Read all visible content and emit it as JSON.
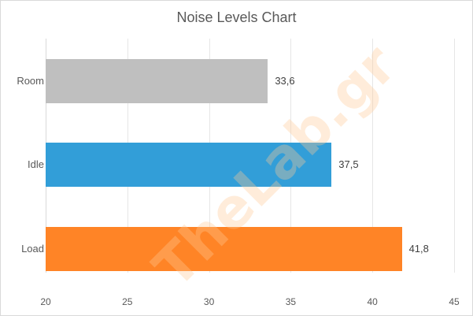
{
  "chart_data": {
    "type": "bar",
    "orientation": "horizontal",
    "title": "Noise Levels Chart",
    "categories": [
      "Room",
      "Idle",
      "Load"
    ],
    "values": [
      33.6,
      37.5,
      41.8
    ],
    "value_labels": [
      "33,6",
      "37,5",
      "41,8"
    ],
    "colors": [
      "#bfbfbf",
      "#329ed8",
      "#ff8426"
    ],
    "xlabel": "",
    "ylabel": "",
    "xlim": [
      20,
      45
    ],
    "xticks": [
      "20",
      "25",
      "30",
      "35",
      "40",
      "45"
    ],
    "grid": true,
    "legend": null
  },
  "watermark": "TheLab.gr"
}
